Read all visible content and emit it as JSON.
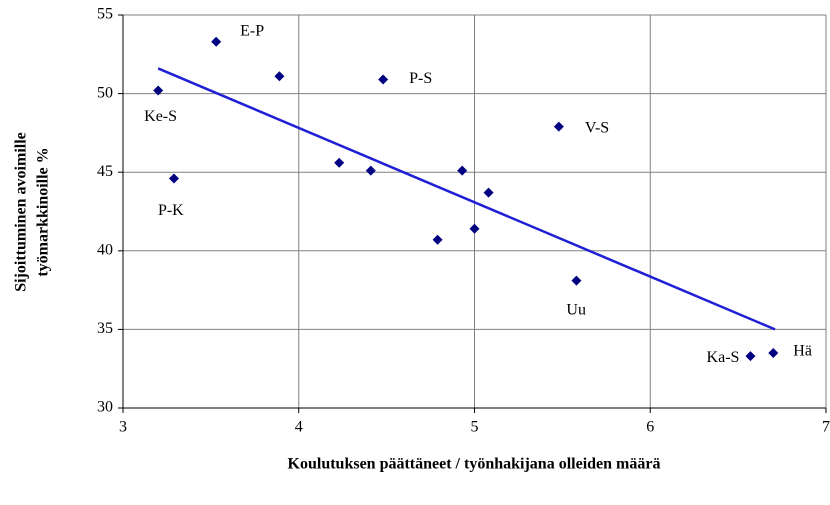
{
  "chart_data": {
    "type": "scatter",
    "xlabel": "Koulutuksen päättäneet / työnhakijana olleiden määrä",
    "ylabel": [
      "Sijoittuminen avoimille",
      "työmarkkinoille %"
    ],
    "xlim": [
      3,
      7
    ],
    "xticks": [
      3,
      4,
      5,
      6,
      7
    ],
    "ylim": [
      30,
      55
    ],
    "yticks": [
      30,
      35,
      40,
      45,
      50,
      55
    ],
    "grid": true,
    "series": [
      {
        "color": "#000080",
        "x": [
          3.2,
          3.53,
          3.89,
          3.29,
          4.48,
          4.23,
          4.41,
          4.93,
          5.08,
          4.79,
          5.0,
          5.48,
          5.58,
          6.57,
          6.7
        ],
        "values": [
          50.2,
          53.3,
          51.1,
          44.6,
          50.9,
          45.6,
          45.1,
          45.1,
          43.7,
          40.7,
          41.4,
          47.9,
          38.1,
          33.3,
          33.5
        ],
        "labels": [
          "Ke-S",
          "E-P",
          null,
          "P-K",
          "P-S",
          null,
          null,
          null,
          null,
          null,
          null,
          "V-S",
          "Uu",
          "Ka-S",
          "Hä"
        ]
      }
    ],
    "trendline": {
      "color": "#1f1fd6",
      "x": [
        3.2,
        6.71
      ],
      "values": [
        51.6,
        35.0
      ]
    }
  }
}
